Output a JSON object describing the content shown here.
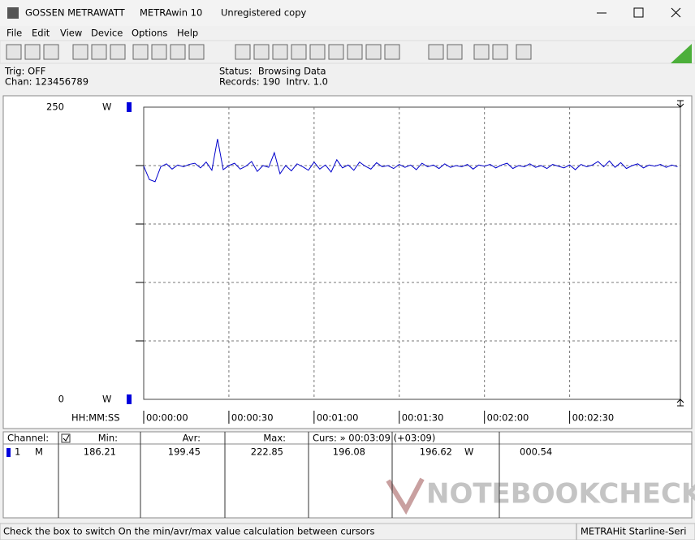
{
  "window": {
    "app_name": "GOSSEN METRAWATT",
    "program": "METRAwin 10",
    "license": "Unregistered copy"
  },
  "menu": [
    "File",
    "Edit",
    "View",
    "Device",
    "Options",
    "Help"
  ],
  "info": {
    "trig": "Trig: OFF",
    "chan": "Chan: 123456789",
    "status": "Status:  Browsing Data",
    "records": "Records: 190  Intrv. 1.0"
  },
  "chart_data": {
    "type": "line",
    "unit": "W",
    "x_axis_label": "HH:MM:SS",
    "color": "#0000cc",
    "xlim": [
      0,
      189
    ],
    "xticks": [
      {
        "value": 0,
        "label": "00:00:00"
      },
      {
        "value": 30,
        "label": "00:00:30"
      },
      {
        "value": 60,
        "label": "00:01:00"
      },
      {
        "value": 90,
        "label": "00:01:30"
      },
      {
        "value": 120,
        "label": "00:02:00"
      },
      {
        "value": 150,
        "label": "00:02:30"
      }
    ],
    "ylim": [
      0,
      250
    ],
    "yticks": [
      0,
      250
    ],
    "ygrid": [
      50,
      100,
      150,
      200
    ],
    "x": [
      0,
      2,
      4,
      6,
      8,
      10,
      12,
      14,
      16,
      18,
      20,
      22,
      24,
      26,
      28,
      30,
      32,
      34,
      36,
      38,
      40,
      42,
      44,
      46,
      48,
      50,
      52,
      54,
      56,
      58,
      60,
      62,
      64,
      66,
      68,
      70,
      72,
      74,
      76,
      78,
      80,
      82,
      84,
      86,
      88,
      90,
      92,
      94,
      96,
      98,
      100,
      102,
      104,
      106,
      108,
      110,
      112,
      114,
      116,
      118,
      120,
      122,
      124,
      126,
      128,
      130,
      132,
      134,
      136,
      138,
      140,
      142,
      144,
      146,
      148,
      150,
      152,
      154,
      156,
      158,
      160,
      162,
      164,
      166,
      168,
      170,
      172,
      174,
      176,
      178,
      180,
      182,
      184,
      186,
      188
    ],
    "values": [
      199.5,
      188.0,
      186.2,
      199.0,
      201.5,
      197.0,
      200.5,
      199.0,
      201.0,
      202.0,
      198.0,
      203.0,
      196.0,
      222.8,
      196.5,
      200.0,
      202.0,
      197.0,
      199.5,
      203.5,
      195.0,
      200.0,
      198.5,
      211.0,
      193.0,
      200.0,
      195.5,
      201.5,
      199.0,
      196.0,
      203.0,
      197.0,
      200.5,
      194.5,
      205.0,
      198.0,
      200.5,
      196.0,
      203.0,
      199.5,
      197.0,
      202.5,
      199.0,
      200.0,
      197.5,
      201.0,
      198.5,
      200.5,
      196.5,
      202.0,
      199.0,
      200.5,
      197.5,
      201.5,
      198.5,
      200.0,
      199.0,
      201.0,
      197.0,
      200.5,
      199.5,
      201.0,
      198.0,
      200.5,
      202.0,
      197.5,
      200.0,
      199.0,
      201.5,
      198.5,
      200.0,
      197.5,
      201.0,
      199.5,
      198.0,
      200.5,
      196.5,
      201.0,
      199.0,
      200.5,
      203.5,
      199.0,
      204.0,
      198.5,
      202.5,
      197.5,
      200.0,
      201.5,
      198.0,
      200.5,
      199.5,
      201.0,
      198.5,
      200.5,
      199.0
    ]
  },
  "table": {
    "header": [
      "Channel:",
      "Min:",
      "Avr:",
      "Max:",
      "Curs: » 00:03:09 (+03:09)"
    ],
    "row": [
      "1",
      "M",
      "186.21",
      "199.45",
      "222.85",
      "196.08",
      "196.62",
      "W",
      "000.54"
    ]
  },
  "watermark": "NOTEBOOKCHECK",
  "statusbar": {
    "hint": "Check the box to switch On the min/avr/max value calculation between cursors",
    "device": "METRAHit Starline-Seri"
  }
}
